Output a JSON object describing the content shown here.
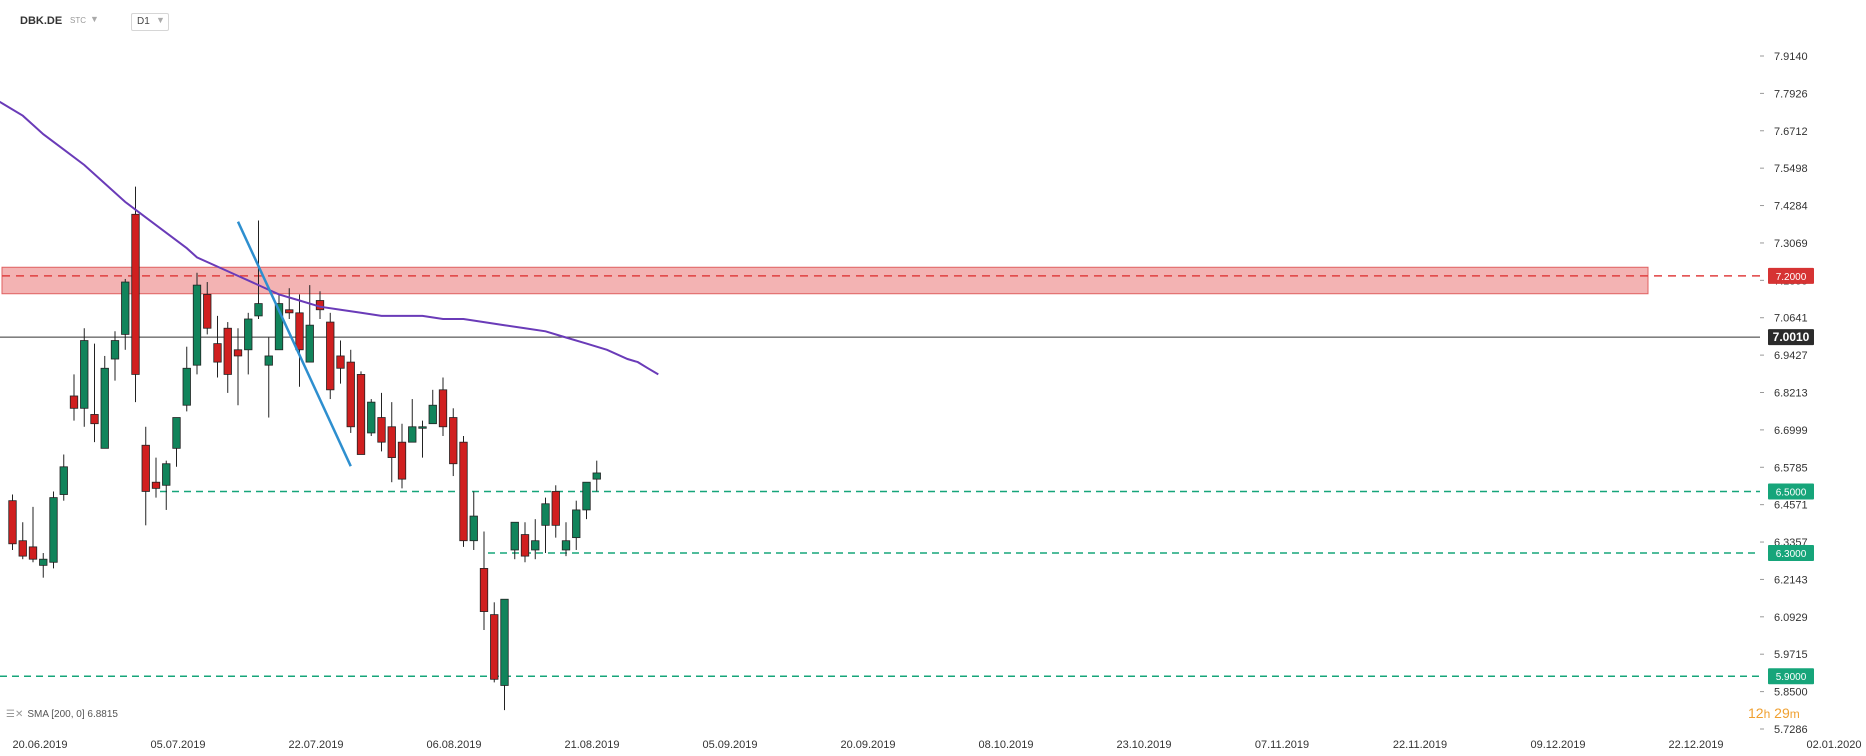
{
  "toolbar": {
    "symbol": "DBK.DE",
    "source": "STC",
    "timeframe": "D1"
  },
  "indicator_legend": "SMA [200, 0] 6.8815",
  "countdown": {
    "hours": "12",
    "hours_unit": "h",
    "minutes": "29",
    "minutes_unit": "m"
  },
  "colors": {
    "bull": "#11845b",
    "bear": "#d01f1f",
    "sma": "#6a3bb8",
    "trendline": "#2e8fcf",
    "zone": "#f0a0a0",
    "support": "#16a57a"
  },
  "chart_data": {
    "type": "candlestick",
    "y_axis": {
      "min": 5.7286,
      "max": 7.914,
      "ticks": [
        "7.9140",
        "7.7926",
        "7.6712",
        "7.5498",
        "7.4284",
        "7.3069",
        "7.1855",
        "7.0641",
        "6.9427",
        "6.8213",
        "6.6999",
        "6.5785",
        "6.4571",
        "6.3357",
        "6.2143",
        "6.0929",
        "5.9715",
        "5.8500",
        "5.7286"
      ]
    },
    "x_axis": {
      "ticks": [
        "20.06.2019",
        "05.07.2019",
        "22.07.2019",
        "06.08.2019",
        "21.08.2019",
        "05.09.2019",
        "20.09.2019",
        "08.10.2019",
        "23.10.2019",
        "07.11.2019",
        "22.11.2019",
        "09.12.2019",
        "22.12.2019",
        "02.01.2020"
      ]
    },
    "current_price": {
      "value": 7.001,
      "label": "7.0010"
    },
    "resistance_zone": {
      "low": 7.142,
      "high": 7.228,
      "level": 7.2,
      "label": "7.2000"
    },
    "support_levels": [
      {
        "value": 6.5,
        "label": "6.5000"
      },
      {
        "value": 6.3,
        "label": "6.3000"
      },
      {
        "value": 5.9,
        "label": "5.9000"
      }
    ],
    "trendline": {
      "from": [
        22,
        7.376
      ],
      "to": [
        33,
        6.582
      ]
    },
    "sma_200": {
      "name": "SMA [200, 0]",
      "last_value": 6.8815,
      "points": [
        [
          -7,
          7.88
        ],
        [
          -4,
          7.82
        ],
        [
          -1,
          7.76
        ],
        [
          1,
          7.72
        ],
        [
          3,
          7.66
        ],
        [
          5,
          7.61
        ],
        [
          7,
          7.56
        ],
        [
          9,
          7.5
        ],
        [
          11,
          7.44
        ],
        [
          13,
          7.39
        ],
        [
          15,
          7.34
        ],
        [
          17,
          7.29
        ],
        [
          18,
          7.26
        ],
        [
          20,
          7.23
        ],
        [
          22,
          7.2
        ],
        [
          24,
          7.17
        ],
        [
          26,
          7.14
        ],
        [
          28,
          7.12
        ],
        [
          30,
          7.1
        ],
        [
          32,
          7.09
        ],
        [
          34,
          7.08
        ],
        [
          36,
          7.07
        ],
        [
          38,
          7.07
        ],
        [
          40,
          7.07
        ],
        [
          42,
          7.06
        ],
        [
          44,
          7.06
        ],
        [
          46,
          7.05
        ],
        [
          48,
          7.04
        ],
        [
          50,
          7.03
        ],
        [
          52,
          7.02
        ],
        [
          54,
          7.0
        ],
        [
          56,
          6.98
        ],
        [
          58,
          6.96
        ],
        [
          60,
          6.93
        ],
        [
          61,
          6.92
        ],
        [
          62,
          6.9
        ],
        [
          63,
          6.88
        ]
      ]
    },
    "candles": [
      {
        "x": 0,
        "o": 6.47,
        "h": 6.49,
        "l": 6.31,
        "c": 6.33
      },
      {
        "x": 1,
        "o": 6.34,
        "h": 6.4,
        "l": 6.28,
        "c": 6.29
      },
      {
        "x": 2,
        "o": 6.32,
        "h": 6.45,
        "l": 6.27,
        "c": 6.28
      },
      {
        "x": 3,
        "o": 6.26,
        "h": 6.3,
        "l": 6.22,
        "c": 6.28
      },
      {
        "x": 4,
        "o": 6.27,
        "h": 6.5,
        "l": 6.25,
        "c": 6.48
      },
      {
        "x": 5,
        "o": 6.49,
        "h": 6.62,
        "l": 6.47,
        "c": 6.58
      },
      {
        "x": 6,
        "o": 6.81,
        "h": 6.88,
        "l": 6.73,
        "c": 6.77
      },
      {
        "x": 7,
        "o": 6.77,
        "h": 7.03,
        "l": 6.71,
        "c": 6.99
      },
      {
        "x": 8,
        "o": 6.75,
        "h": 6.98,
        "l": 6.66,
        "c": 6.72
      },
      {
        "x": 9,
        "o": 6.64,
        "h": 6.94,
        "l": 6.64,
        "c": 6.9
      },
      {
        "x": 10,
        "o": 6.93,
        "h": 7.02,
        "l": 6.86,
        "c": 6.99
      },
      {
        "x": 11,
        "o": 7.01,
        "h": 7.19,
        "l": 6.96,
        "c": 7.18
      },
      {
        "x": 12,
        "o": 7.4,
        "h": 7.49,
        "l": 6.79,
        "c": 6.88
      },
      {
        "x": 13,
        "o": 6.65,
        "h": 6.71,
        "l": 6.39,
        "c": 6.5
      },
      {
        "x": 14,
        "o": 6.53,
        "h": 6.61,
        "l": 6.48,
        "c": 6.51
      },
      {
        "x": 15,
        "o": 6.52,
        "h": 6.6,
        "l": 6.44,
        "c": 6.59
      },
      {
        "x": 16,
        "o": 6.64,
        "h": 6.74,
        "l": 6.58,
        "c": 6.74
      },
      {
        "x": 17,
        "o": 6.78,
        "h": 6.97,
        "l": 6.76,
        "c": 6.9
      },
      {
        "x": 18,
        "o": 6.91,
        "h": 7.21,
        "l": 6.88,
        "c": 7.17
      },
      {
        "x": 19,
        "o": 7.14,
        "h": 7.18,
        "l": 7.01,
        "c": 7.03
      },
      {
        "x": 20,
        "o": 6.98,
        "h": 7.07,
        "l": 6.87,
        "c": 6.92
      },
      {
        "x": 21,
        "o": 7.03,
        "h": 7.05,
        "l": 6.82,
        "c": 6.88
      },
      {
        "x": 22,
        "o": 6.96,
        "h": 7.03,
        "l": 6.78,
        "c": 6.94
      },
      {
        "x": 23,
        "o": 6.96,
        "h": 7.08,
        "l": 6.88,
        "c": 7.06
      },
      {
        "x": 24,
        "o": 7.07,
        "h": 7.38,
        "l": 7.06,
        "c": 7.11
      },
      {
        "x": 25,
        "o": 6.91,
        "h": 7.0,
        "l": 6.74,
        "c": 6.94
      },
      {
        "x": 26,
        "o": 6.96,
        "h": 7.14,
        "l": 6.96,
        "c": 7.11
      },
      {
        "x": 27,
        "o": 7.09,
        "h": 7.16,
        "l": 7.06,
        "c": 7.08
      },
      {
        "x": 28,
        "o": 7.08,
        "h": 7.14,
        "l": 6.84,
        "c": 6.96
      },
      {
        "x": 29,
        "o": 6.92,
        "h": 7.17,
        "l": 6.92,
        "c": 7.04
      },
      {
        "x": 30,
        "o": 7.12,
        "h": 7.15,
        "l": 7.06,
        "c": 7.09
      },
      {
        "x": 31,
        "o": 7.05,
        "h": 7.08,
        "l": 6.8,
        "c": 6.83
      },
      {
        "x": 32,
        "o": 6.94,
        "h": 6.99,
        "l": 6.85,
        "c": 6.9
      },
      {
        "x": 33,
        "o": 6.92,
        "h": 6.96,
        "l": 6.69,
        "c": 6.71
      },
      {
        "x": 34,
        "o": 6.88,
        "h": 6.89,
        "l": 6.62,
        "c": 6.62
      },
      {
        "x": 35,
        "o": 6.69,
        "h": 6.8,
        "l": 6.68,
        "c": 6.79
      },
      {
        "x": 36,
        "o": 6.74,
        "h": 6.82,
        "l": 6.63,
        "c": 6.66
      },
      {
        "x": 37,
        "o": 6.71,
        "h": 6.79,
        "l": 6.53,
        "c": 6.61
      },
      {
        "x": 38,
        "o": 6.66,
        "h": 6.72,
        "l": 6.51,
        "c": 6.54
      },
      {
        "x": 39,
        "o": 6.66,
        "h": 6.8,
        "l": 6.66,
        "c": 6.71
      },
      {
        "x": 40,
        "o": 6.71,
        "h": 6.73,
        "l": 6.61,
        "c": 6.71
      },
      {
        "x": 41,
        "o": 6.72,
        "h": 6.83,
        "l": 6.72,
        "c": 6.78
      },
      {
        "x": 42,
        "o": 6.83,
        "h": 6.87,
        "l": 6.68,
        "c": 6.71
      },
      {
        "x": 43,
        "o": 6.74,
        "h": 6.77,
        "l": 6.55,
        "c": 6.59
      },
      {
        "x": 44,
        "o": 6.66,
        "h": 6.68,
        "l": 6.32,
        "c": 6.34
      },
      {
        "x": 45,
        "o": 6.34,
        "h": 6.5,
        "l": 6.31,
        "c": 6.42
      },
      {
        "x": 46,
        "o": 6.25,
        "h": 6.37,
        "l": 6.05,
        "c": 6.11
      },
      {
        "x": 47,
        "o": 6.1,
        "h": 6.14,
        "l": 5.88,
        "c": 5.89
      },
      {
        "x": 48,
        "o": 5.87,
        "h": 6.15,
        "l": 5.79,
        "c": 6.15
      },
      {
        "x": 49,
        "o": 6.31,
        "h": 6.4,
        "l": 6.28,
        "c": 6.4
      },
      {
        "x": 50,
        "o": 6.36,
        "h": 6.4,
        "l": 6.27,
        "c": 6.29
      },
      {
        "x": 51,
        "o": 6.31,
        "h": 6.41,
        "l": 6.28,
        "c": 6.34
      },
      {
        "x": 52,
        "o": 6.39,
        "h": 6.48,
        "l": 6.3,
        "c": 6.46
      },
      {
        "x": 53,
        "o": 6.5,
        "h": 6.52,
        "l": 6.35,
        "c": 6.39
      },
      {
        "x": 54,
        "o": 6.31,
        "h": 6.4,
        "l": 6.29,
        "c": 6.34
      },
      {
        "x": 55,
        "o": 6.35,
        "h": 6.47,
        "l": 6.31,
        "c": 6.44
      },
      {
        "x": 56,
        "o": 6.44,
        "h": 6.53,
        "l": 6.41,
        "c": 6.53
      },
      {
        "x": 57,
        "o": 6.54,
        "h": 6.6,
        "l": 6.5,
        "c": 6.56
      }
    ]
  }
}
